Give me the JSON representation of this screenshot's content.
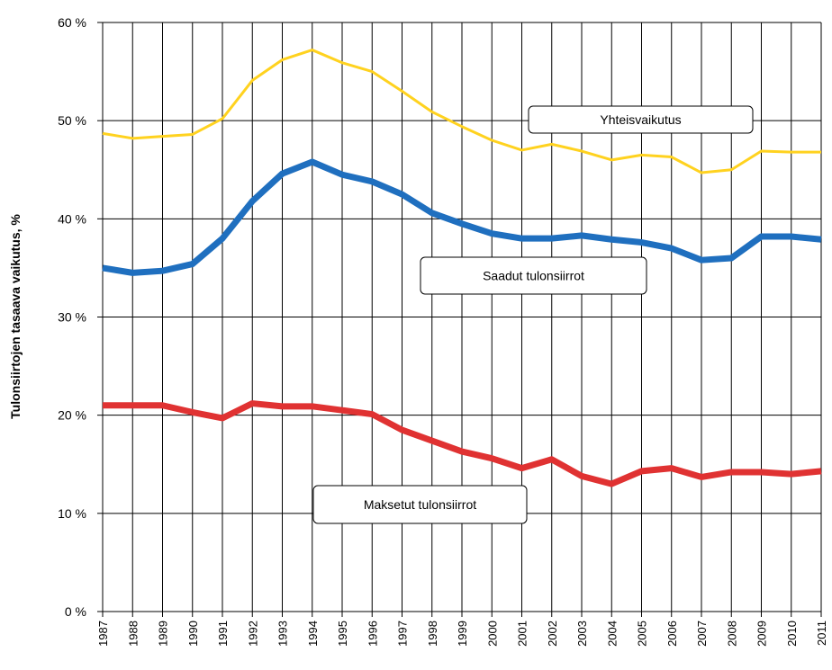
{
  "chart_data": {
    "type": "line",
    "y_axis_label": "Tulonsiirtojen tasaava vaikutus, %",
    "categories": [
      "1987",
      "1988",
      "1989",
      "1990",
      "1991",
      "1992",
      "1993",
      "1994",
      "1995",
      "1996",
      "1997",
      "1998",
      "1999",
      "2000",
      "2001",
      "2002",
      "2003",
      "2004",
      "2005",
      "2006",
      "2007",
      "2008",
      "2009",
      "2010",
      "2011"
    ],
    "series": [
      {
        "name": "Yhteisvaikutus",
        "color": "#ffd21f",
        "values": [
          48.7,
          48.2,
          48.4,
          48.6,
          50.2,
          54.1,
          56.2,
          57.2,
          55.9,
          55.0,
          53.0,
          50.9,
          49.4,
          48.0,
          47.0,
          47.6,
          46.9,
          46.0,
          46.5,
          46.3,
          44.7,
          45.0,
          46.9,
          46.8,
          46.8
        ]
      },
      {
        "name": "Saadut tulonsiirrot",
        "color": "#1f6fbf",
        "values": [
          35.0,
          34.5,
          34.7,
          35.4,
          38.0,
          41.8,
          44.6,
          45.8,
          44.5,
          43.8,
          42.5,
          40.6,
          39.5,
          38.5,
          38.0,
          38.0,
          38.3,
          37.9,
          37.6,
          37.0,
          35.8,
          36.0,
          38.2,
          38.2,
          37.9
        ]
      },
      {
        "name": "Maksetut tulonsiirrot",
        "color": "#e03232",
        "values": [
          21.0,
          21.0,
          21.0,
          20.3,
          19.7,
          21.2,
          20.9,
          20.9,
          20.5,
          20.1,
          18.5,
          17.4,
          16.3,
          15.6,
          14.6,
          15.5,
          13.8,
          13.0,
          14.3,
          14.6,
          13.7,
          14.2,
          14.2,
          14.0,
          14.3
        ]
      }
    ],
    "ylim": [
      0,
      60
    ],
    "yticks": [
      {
        "value": 0,
        "label": "0 %"
      },
      {
        "value": 10,
        "label": "10 %"
      },
      {
        "value": 20,
        "label": "20 %"
      },
      {
        "value": 30,
        "label": "30 %"
      },
      {
        "value": 40,
        "label": "40 %"
      },
      {
        "value": 50,
        "label": "50 %"
      },
      {
        "value": 60,
        "label": "60 %"
      }
    ],
    "grid": true
  }
}
